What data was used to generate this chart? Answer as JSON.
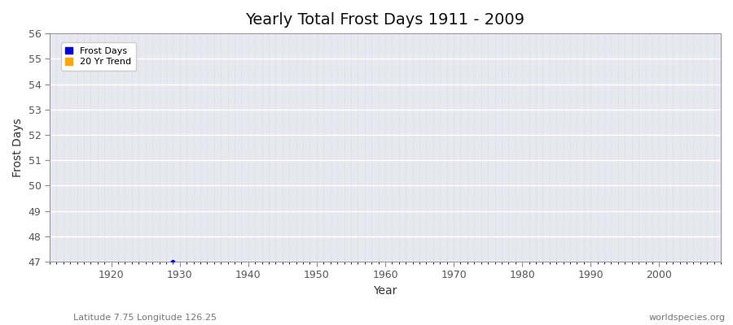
{
  "title": "Yearly Total Frost Days 1911 - 2009",
  "xlabel": "Year",
  "ylabel": "Frost Days",
  "xlim": [
    1911,
    2009
  ],
  "ylim": [
    47,
    56
  ],
  "yticks": [
    47,
    48,
    49,
    50,
    51,
    52,
    53,
    54,
    55,
    56
  ],
  "xticks": [
    1920,
    1930,
    1940,
    1950,
    1960,
    1970,
    1980,
    1990,
    2000
  ],
  "data_points_x": [
    1929
  ],
  "data_points_y": [
    47
  ],
  "data_color": "#0000dd",
  "trend_color": "#ffa500",
  "fig_background_color": "#ffffff",
  "plot_background_color": "#e8e8f0",
  "grid_color": "#ffffff",
  "minor_grid_color": "#d8d8e8",
  "legend_labels": [
    "Frost Days",
    "20 Yr Trend"
  ],
  "bottom_left_text": "Latitude 7.75 Longitude 126.25",
  "bottom_right_text": "worldspecies.org",
  "title_fontsize": 14,
  "axis_label_fontsize": 10,
  "tick_fontsize": 9,
  "annotation_fontsize": 8
}
